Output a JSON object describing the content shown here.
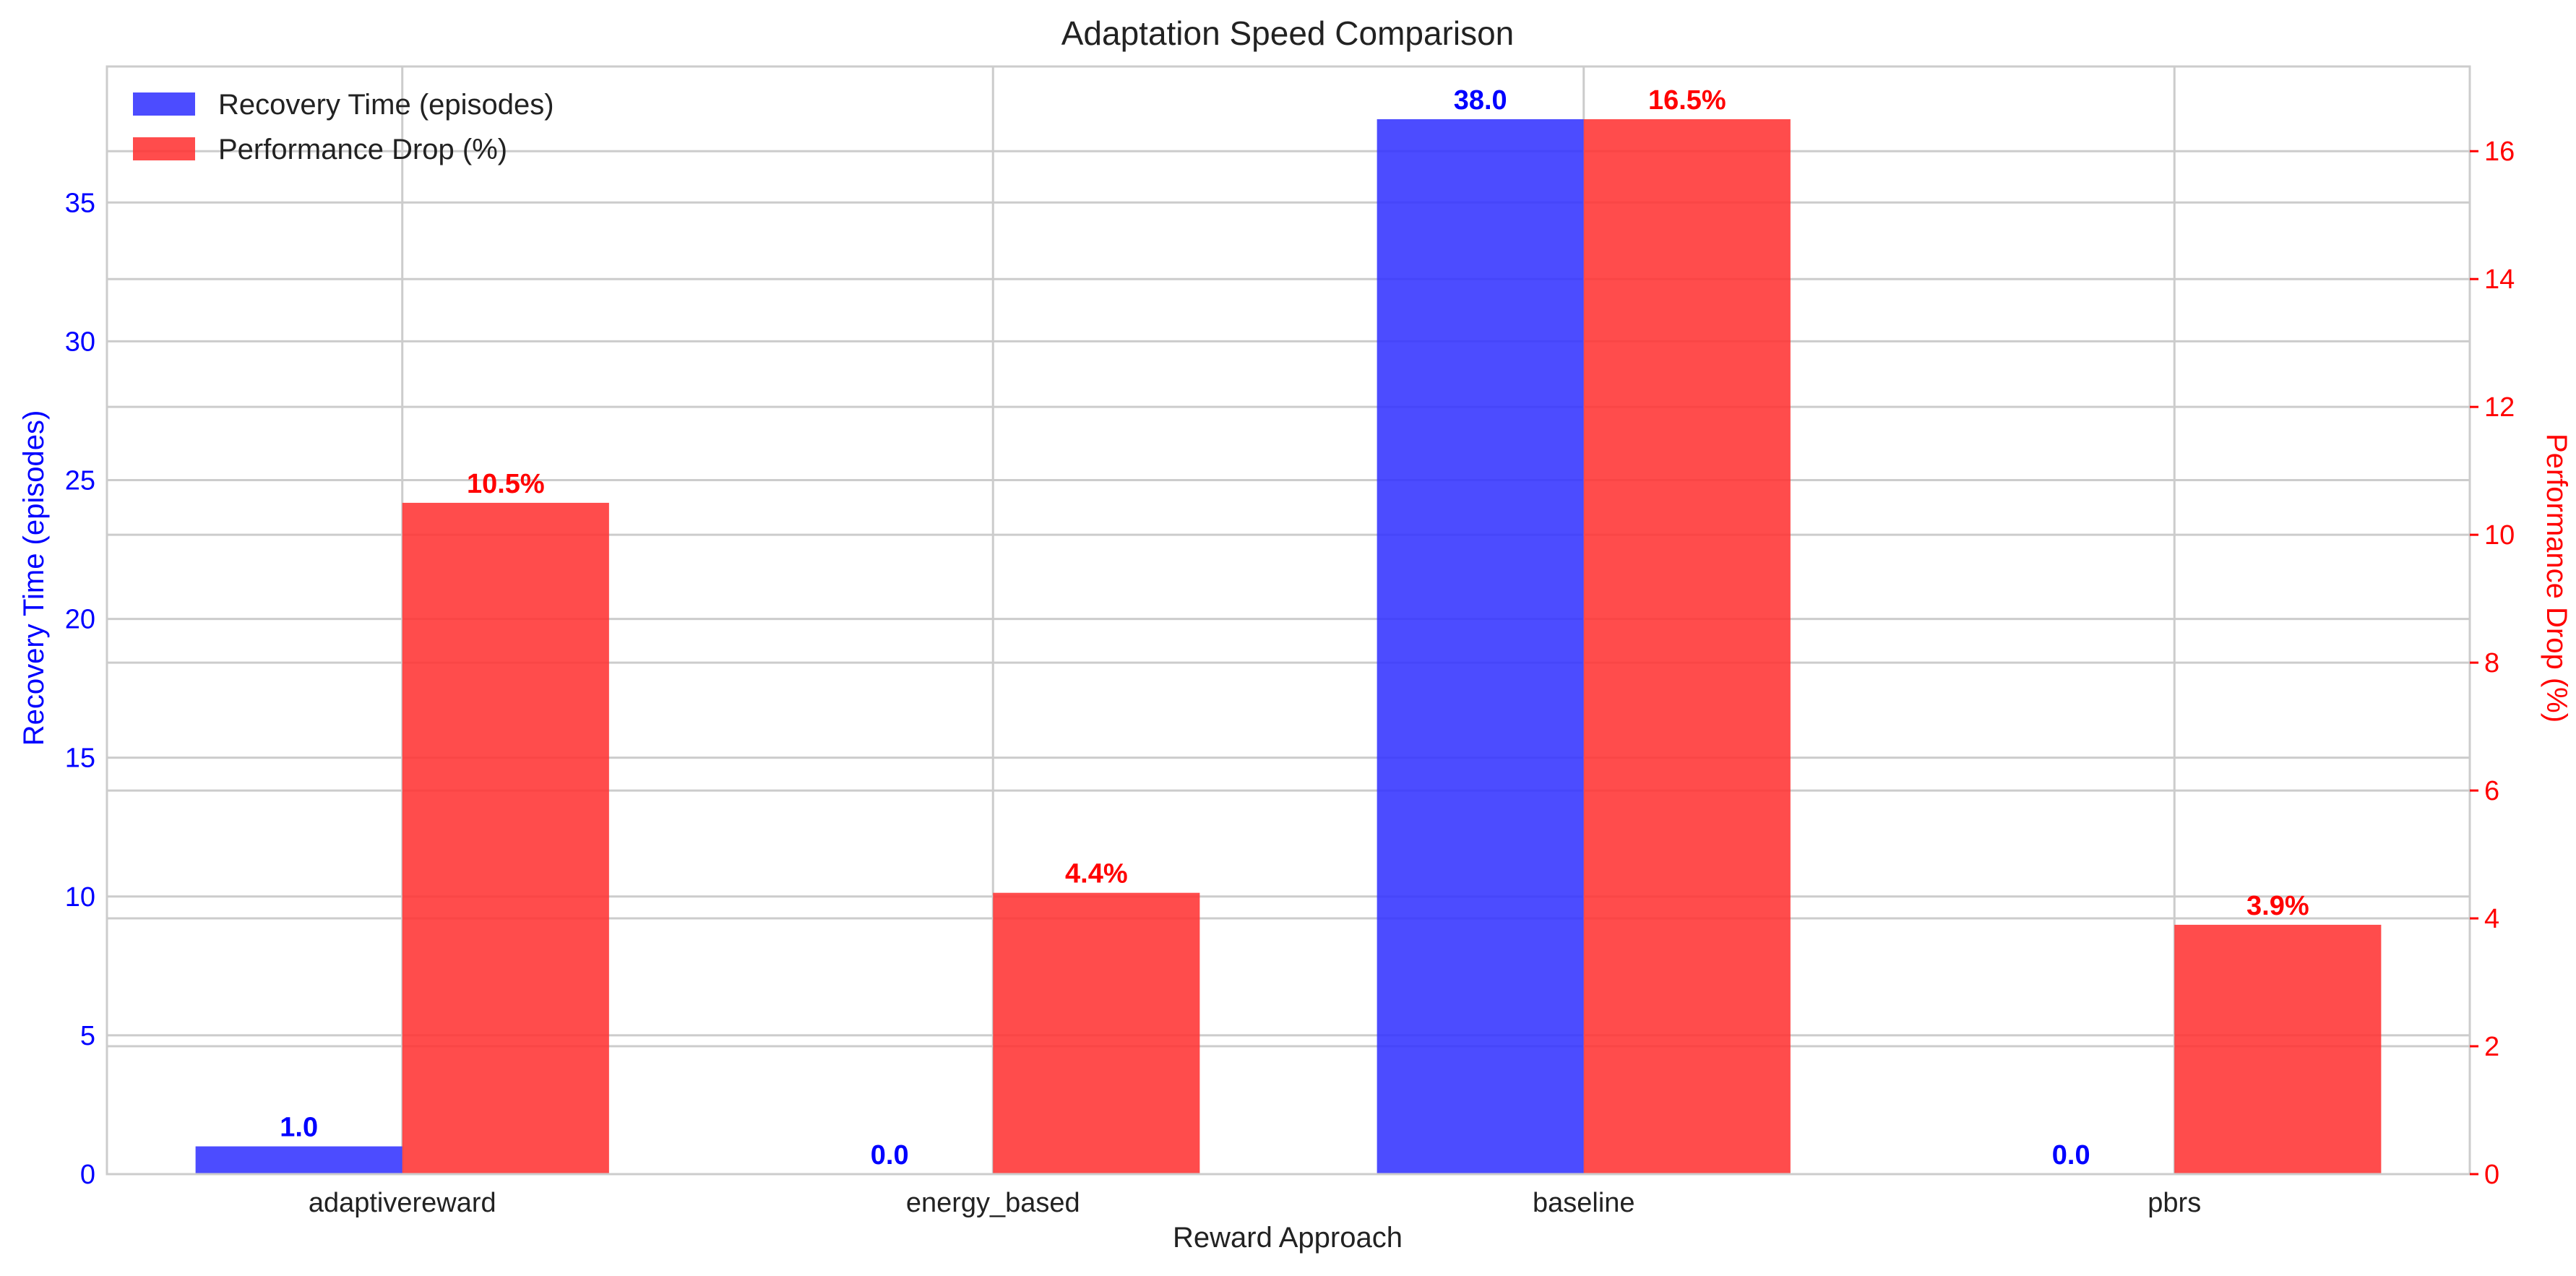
{
  "chart_data": {
    "type": "bar",
    "title": "Adaptation Speed Comparison",
    "xlabel": "Reward Approach",
    "ylabel_left": "Recovery Time (episodes)",
    "ylabel_right": "Performance Drop (%)",
    "categories": [
      "adaptivereward",
      "energy_based",
      "baseline",
      "pbrs"
    ],
    "series": [
      {
        "name": "Recovery Time (episodes)",
        "axis": "left",
        "color": "#3333ff",
        "values": [
          1.0,
          0.0,
          38.0,
          0.0
        ],
        "labels": [
          "1.0",
          "0.0",
          "38.0",
          "0.0"
        ]
      },
      {
        "name": "Performance Drop (%)",
        "axis": "right",
        "color": "#ff3333",
        "values": [
          10.5,
          4.4,
          16.5,
          3.9
        ],
        "labels": [
          "10.5%",
          "4.4%",
          "16.5%",
          "3.9%"
        ]
      }
    ],
    "ylim_left": [
      0,
      39.9
    ],
    "ylim_right": [
      0,
      17.325
    ],
    "yticks_left": [
      "0",
      "5",
      "10",
      "15",
      "20",
      "25",
      "30",
      "35"
    ],
    "yticks_right": [
      "0",
      "2",
      "4",
      "6",
      "8",
      "10",
      "12",
      "14",
      "16"
    ],
    "left_axis_color": "#0000ff",
    "right_axis_color": "#ff0000",
    "grid": true,
    "legend_position": "upper-left"
  }
}
